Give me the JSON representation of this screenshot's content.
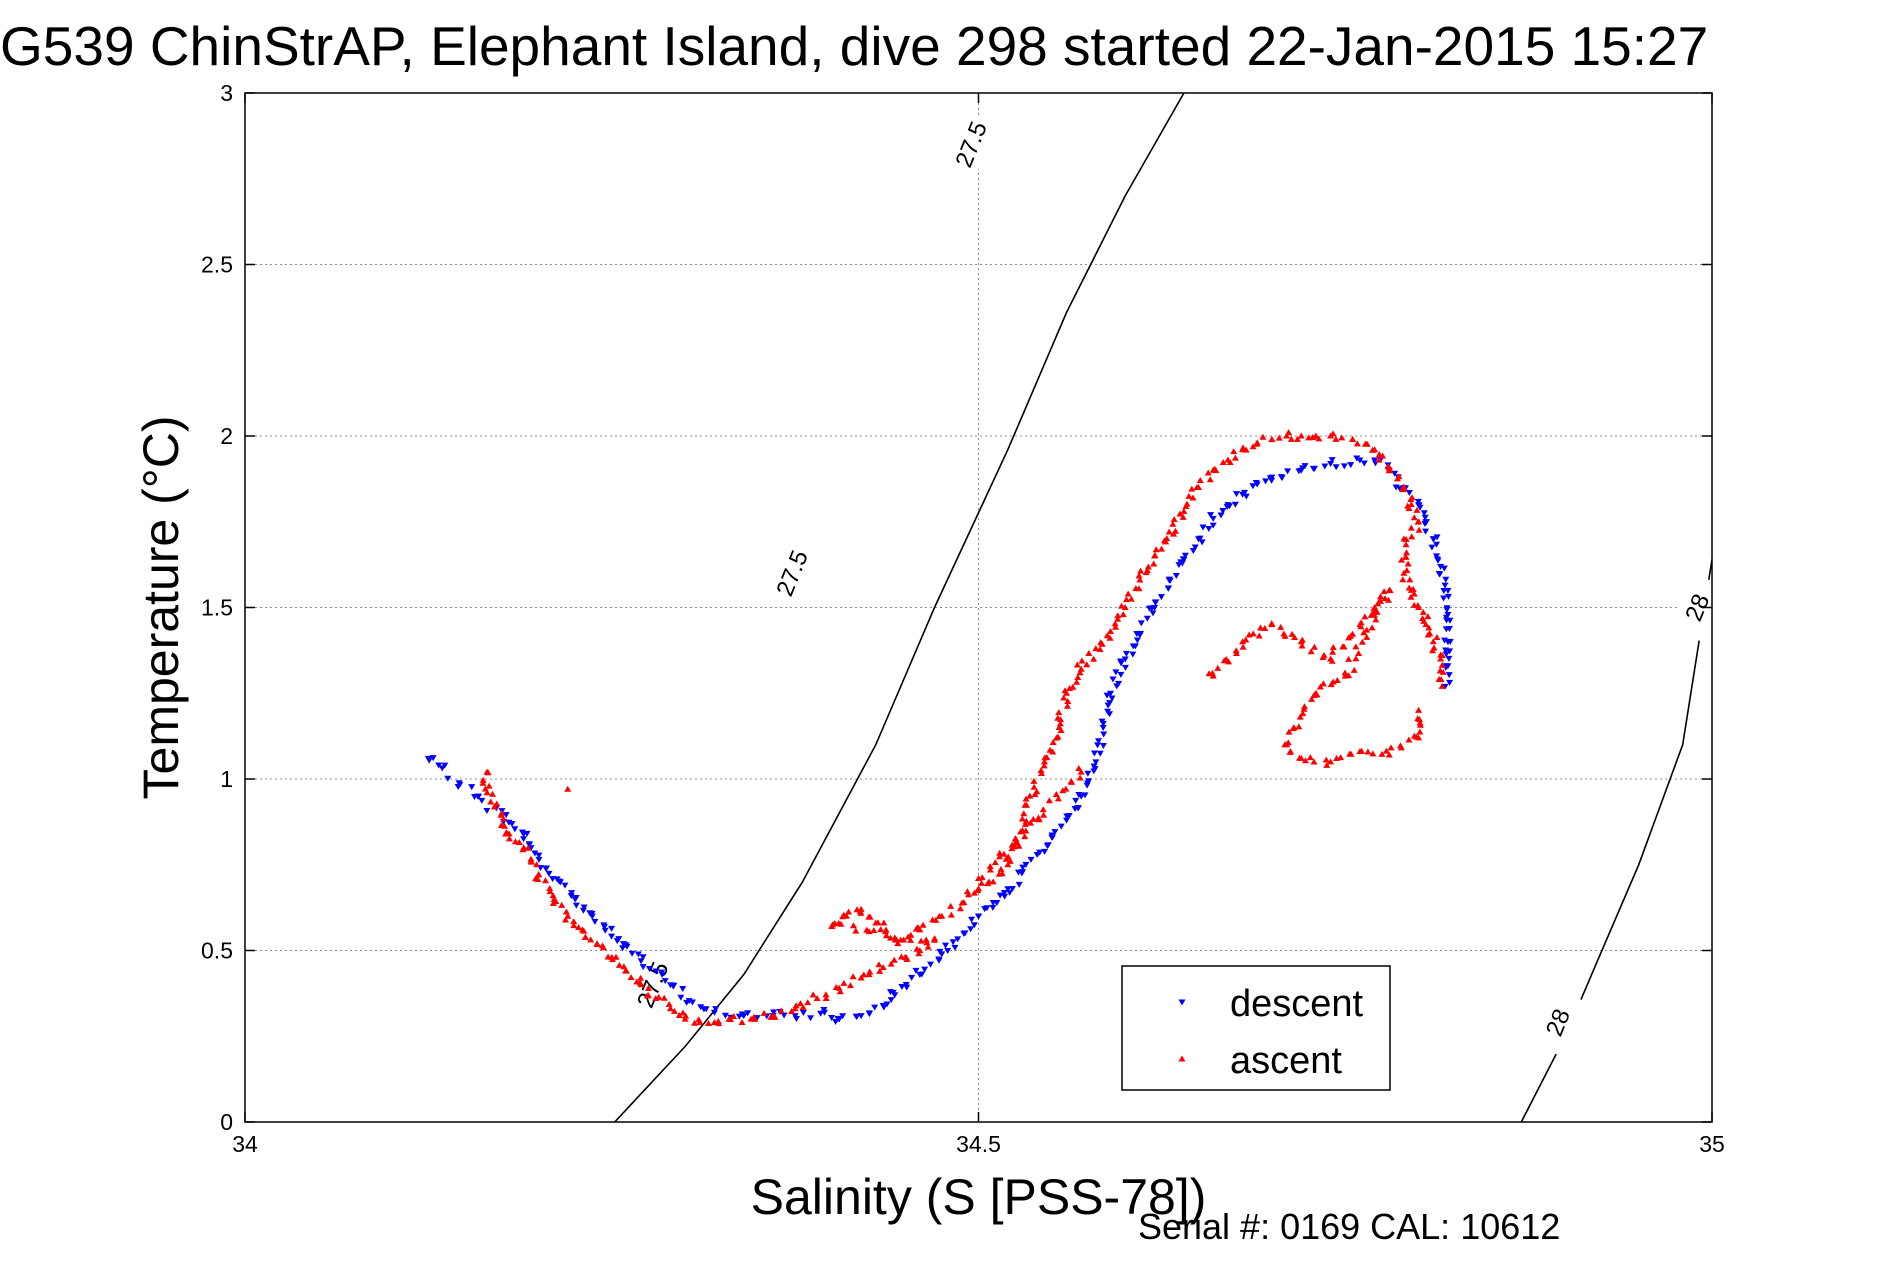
{
  "chart_data": {
    "type": "scatter",
    "title": "G539 ChinStrAP, Elephant Island, dive 298 started 22-Jan-2015 15:27",
    "xlabel": "Salinity (S [PSS-78])",
    "ylabel": "Temperature (°C)",
    "xlim": [
      34,
      35
    ],
    "ylim": [
      0,
      3
    ],
    "x_ticks": [
      34,
      34.5,
      35
    ],
    "x_tick_labels": [
      "34",
      "34.5",
      "35"
    ],
    "y_ticks": [
      0,
      0.5,
      1,
      1.5,
      2,
      2.5,
      3
    ],
    "y_tick_labels": [
      "0",
      "0.5",
      "1",
      "1.5",
      "2",
      "2.5",
      "3"
    ],
    "grid": true,
    "legend_position": "bottom-right",
    "footer": "Serial #: 0169 CAL: 10612",
    "contours": [
      {
        "value": "27.5",
        "points": [
          [
            34.252,
            0
          ],
          [
            34.3,
            0.22
          ],
          [
            34.34,
            0.43
          ],
          [
            34.38,
            0.7
          ],
          [
            34.43,
            1.1
          ],
          [
            34.47,
            1.5
          ],
          [
            34.52,
            1.96
          ],
          [
            34.56,
            2.36
          ],
          [
            34.6,
            2.7
          ],
          [
            34.64,
            3.0
          ]
        ]
      },
      {
        "value": "28",
        "points": [
          [
            34.87,
            0
          ],
          [
            34.9,
            0.25
          ],
          [
            34.92,
            0.45
          ],
          [
            34.95,
            0.75
          ],
          [
            34.98,
            1.1
          ],
          [
            35.0,
            1.64
          ]
        ]
      }
    ],
    "contour_labels": [
      {
        "text": "27.5",
        "x": 34.495,
        "y": 2.85
      },
      {
        "text": "27.5",
        "x": 34.373,
        "y": 1.6
      },
      {
        "text": "27.5",
        "x": 34.278,
        "y": 0.4
      },
      {
        "text": "28",
        "x": 34.99,
        "y": 1.5
      },
      {
        "text": "28",
        "x": 34.895,
        "y": 0.29
      }
    ],
    "series": [
      {
        "name": "descent",
        "marker": "triangle-down",
        "color": "#0000ff",
        "path": [
          [
            34.125,
            1.06
          ],
          [
            34.182,
            0.87
          ],
          [
            34.19,
            0.84
          ],
          [
            34.195,
            0.8
          ],
          [
            34.205,
            0.74
          ],
          [
            34.215,
            0.7
          ],
          [
            34.225,
            0.65
          ],
          [
            34.235,
            0.61
          ],
          [
            34.245,
            0.57
          ],
          [
            34.258,
            0.52
          ],
          [
            34.27,
            0.47
          ],
          [
            34.29,
            0.4
          ],
          [
            34.305,
            0.35
          ],
          [
            34.32,
            0.32
          ],
          [
            34.34,
            0.31
          ],
          [
            34.36,
            0.31
          ],
          [
            34.375,
            0.31
          ],
          [
            34.395,
            0.32
          ],
          [
            34.405,
            0.3
          ],
          [
            34.42,
            0.31
          ],
          [
            34.435,
            0.34
          ],
          [
            34.44,
            0.38
          ],
          [
            34.46,
            0.43
          ],
          [
            34.475,
            0.49
          ],
          [
            34.49,
            0.55
          ],
          [
            34.5,
            0.6
          ],
          [
            34.51,
            0.64
          ],
          [
            34.52,
            0.68
          ],
          [
            34.53,
            0.73
          ],
          [
            34.54,
            0.78
          ],
          [
            34.55,
            0.83
          ],
          [
            34.56,
            0.88
          ],
          [
            34.57,
            0.95
          ],
          [
            34.58,
            1.05
          ],
          [
            34.585,
            1.15
          ],
          [
            34.59,
            1.25
          ],
          [
            34.6,
            1.35
          ],
          [
            34.61,
            1.42
          ],
          [
            34.62,
            1.5
          ],
          [
            34.63,
            1.58
          ],
          [
            34.64,
            1.64
          ],
          [
            34.65,
            1.7
          ],
          [
            34.66,
            1.76
          ],
          [
            34.67,
            1.8
          ],
          [
            34.68,
            1.83
          ],
          [
            34.69,
            1.86
          ],
          [
            34.7,
            1.88
          ],
          [
            34.72,
            1.9
          ],
          [
            34.74,
            1.92
          ],
          [
            34.76,
            1.93
          ],
          [
            34.77,
            1.93
          ],
          [
            34.78,
            1.9
          ],
          [
            34.79,
            1.85
          ],
          [
            34.8,
            1.8
          ],
          [
            34.805,
            1.75
          ],
          [
            34.81,
            1.7
          ],
          [
            34.815,
            1.62
          ],
          [
            34.82,
            1.55
          ],
          [
            34.82,
            1.48
          ],
          [
            34.82,
            1.4
          ],
          [
            34.82,
            1.33
          ],
          [
            34.818,
            1.27
          ]
        ]
      },
      {
        "name": "ascent",
        "marker": "triangle-up",
        "color": "#ff0000",
        "path": [
          [
            34.165,
            1.02
          ],
          [
            34.165,
            0.96
          ],
          [
            34.175,
            0.9
          ],
          [
            34.18,
            0.84
          ],
          [
            34.19,
            0.8
          ],
          [
            34.195,
            0.76
          ],
          [
            34.2,
            0.72
          ],
          [
            34.21,
            0.66
          ],
          [
            34.22,
            0.6
          ],
          [
            34.23,
            0.56
          ],
          [
            34.24,
            0.52
          ],
          [
            34.25,
            0.48
          ],
          [
            34.26,
            0.44
          ],
          [
            34.27,
            0.4
          ],
          [
            34.28,
            0.36
          ],
          [
            34.29,
            0.33
          ],
          [
            34.3,
            0.3
          ],
          [
            34.31,
            0.29
          ],
          [
            34.32,
            0.29
          ],
          [
            34.33,
            0.3
          ],
          [
            34.345,
            0.3
          ],
          [
            34.36,
            0.31
          ],
          [
            34.375,
            0.33
          ],
          [
            34.39,
            0.36
          ],
          [
            34.405,
            0.39
          ],
          [
            34.42,
            0.42
          ],
          [
            34.435,
            0.45
          ],
          [
            34.45,
            0.48
          ],
          [
            34.46,
            0.5
          ],
          [
            34.47,
            0.53
          ],
          [
            34.4,
            0.57
          ],
          [
            34.41,
            0.6
          ],
          [
            34.42,
            0.62
          ],
          [
            34.43,
            0.58
          ],
          [
            34.445,
            0.52
          ],
          [
            34.46,
            0.56
          ],
          [
            34.475,
            0.6
          ],
          [
            34.49,
            0.64
          ],
          [
            34.5,
            0.68
          ],
          [
            34.51,
            0.7
          ],
          [
            34.52,
            0.75
          ],
          [
            34.53,
            0.85
          ],
          [
            34.535,
            0.95
          ],
          [
            34.545,
            1.05
          ],
          [
            34.555,
            1.15
          ],
          [
            34.56,
            1.25
          ],
          [
            34.57,
            1.32
          ],
          [
            34.58,
            1.38
          ],
          [
            34.59,
            1.43
          ],
          [
            34.6,
            1.5
          ],
          [
            34.61,
            1.58
          ],
          [
            34.62,
            1.65
          ],
          [
            34.63,
            1.72
          ],
          [
            34.64,
            1.78
          ],
          [
            34.65,
            1.85
          ],
          [
            34.66,
            1.9
          ],
          [
            34.67,
            1.93
          ],
          [
            34.68,
            1.96
          ],
          [
            34.69,
            1.98
          ],
          [
            34.7,
            1.99
          ],
          [
            34.71,
            2.0
          ],
          [
            34.72,
            2.0
          ],
          [
            34.73,
            2.0
          ],
          [
            34.74,
            2.0
          ],
          [
            34.755,
            1.99
          ],
          [
            34.77,
            1.96
          ],
          [
            34.78,
            1.9
          ],
          [
            34.79,
            1.85
          ],
          [
            34.795,
            1.8
          ],
          [
            34.8,
            1.75
          ],
          [
            34.79,
            1.7
          ],
          [
            34.79,
            1.6
          ],
          [
            34.795,
            1.55
          ],
          [
            34.8,
            1.5
          ],
          [
            34.805,
            1.45
          ],
          [
            34.81,
            1.4
          ],
          [
            34.815,
            1.35
          ],
          [
            34.816,
            1.27
          ],
          [
            34.66,
            1.3
          ],
          [
            34.68,
            1.4
          ],
          [
            34.7,
            1.45
          ],
          [
            34.72,
            1.4
          ],
          [
            34.74,
            1.35
          ],
          [
            34.76,
            1.45
          ],
          [
            34.77,
            1.5
          ],
          [
            34.78,
            1.55
          ],
          [
            34.75,
            1.3
          ],
          [
            34.73,
            1.25
          ],
          [
            34.71,
            1.1
          ],
          [
            34.72,
            1.06
          ],
          [
            34.74,
            1.05
          ],
          [
            34.76,
            1.08
          ],
          [
            34.78,
            1.07
          ],
          [
            34.8,
            1.12
          ],
          [
            34.8,
            1.2
          ],
          [
            34.57,
            1.02
          ],
          [
            34.5,
            0.71
          ],
          [
            34.22,
            0.97
          ]
        ]
      }
    ]
  }
}
